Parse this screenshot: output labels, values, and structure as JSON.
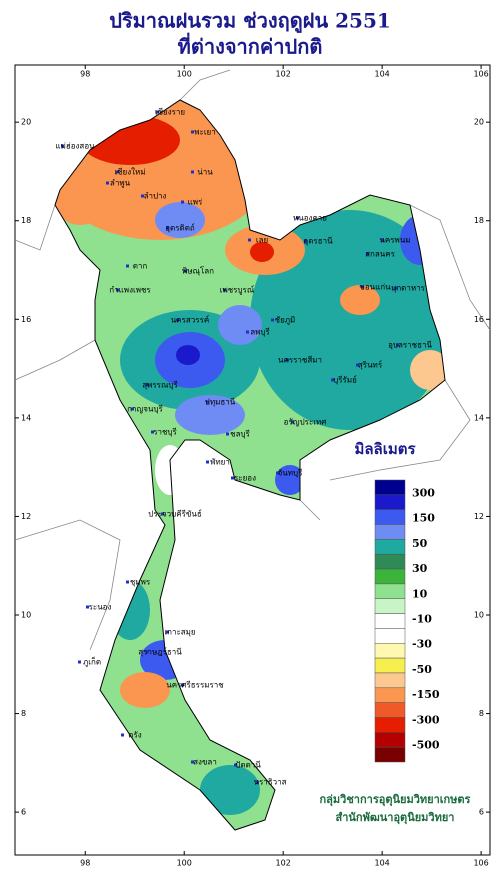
{
  "title": [
    "ปริมาณฝนรวม ช่วงฤดูฝน 2551",
    "ที่ต่างจากค่าปกติ"
  ],
  "map": {
    "type": "map",
    "xlim": [
      96.58,
      106.18
    ],
    "ylim": [
      5.13,
      21.16
    ],
    "xticks": [
      98,
      100,
      102,
      104,
      106
    ],
    "yticks": [
      6,
      8,
      10,
      12,
      14,
      16,
      18,
      20
    ],
    "legend": {
      "title": "มิลลิเมตร",
      "labels": [
        300,
        150,
        50,
        30,
        10,
        -10,
        -30,
        -50,
        -150,
        -300,
        -500
      ],
      "colors": [
        "#000090",
        "#1a1acc",
        "#3c5af0",
        "#6f8cf5",
        "#1fa9a0",
        "#2e8b57",
        "#3cb43c",
        "#8fe08f",
        "#c8f5c8",
        "#ffffff",
        "#ffffff",
        "#fff8b0",
        "#f5f050",
        "#fdc890",
        "#fa9650",
        "#f05a28",
        "#e61e00",
        "#b40000",
        "#780000"
      ]
    },
    "place_labels": [
      "เชียงราย",
      "พะเยา",
      "แม่ฮ่องสอน",
      "เชียงใหม่",
      "น่าน",
      "ลำพูน",
      "ลำปาง",
      "แพร่",
      "อุตรดิตถ์",
      "หนองคาย",
      "อุดรธานี",
      "นครพนม",
      "สกลนคร",
      "เลย",
      "ตาก",
      "พิษณุโลก",
      "มุกดาหาร",
      "ขอนแก่น",
      "กำแพงเพชร",
      "เพชรบูรณ์",
      "ชัยภูมิ",
      "นครสวรรค์",
      "อุบลราชธานี",
      "ลพบุรี",
      "นครราชสีมา",
      "สุรินทร์",
      "สุพรรณบุรี",
      "บุรีรัมย์",
      "กาญจนบุรี",
      "ปทุมธานี",
      "อรัญประเทศ",
      "ราชบุรี",
      "ชลบุรี",
      "พัทยา",
      "ระยอง",
      "จันทบุรี",
      "ประจวบคีรีขันธ์",
      "ชุมพร",
      "ระนอง",
      "เกาะสมุย",
      "สุราษฎร์ธานี",
      "นครศรีธรรมราช",
      "ภูเก็ต",
      "ตรัง",
      "สงขลา",
      "ปัตตานี",
      "นราธิวาส"
    ]
  },
  "credits": [
    "กลุ่มวิชาการอุตุนิยมวิทยาเกษตร",
    "สำนักพัฒนาอุตุนิยมวิทยา"
  ]
}
